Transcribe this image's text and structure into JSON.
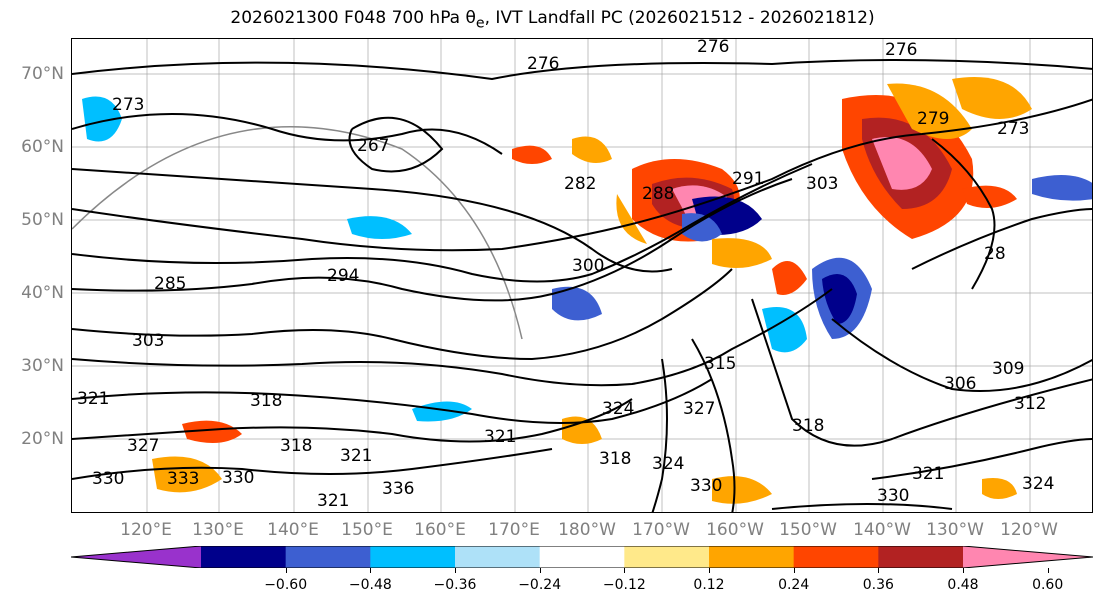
{
  "title": "2026021300 F048 700 hPa θ",
  "title_sub": "e",
  "title_rest": ", IVT Landfall PC (2026021512 - 2026021812)",
  "lat_labels": [
    "70°N",
    "60°N",
    "50°N",
    "40°N",
    "30°N",
    "20°N"
  ],
  "lon_labels": [
    "120°E",
    "130°E",
    "140°E",
    "150°E",
    "160°E",
    "170°E",
    "180°W",
    "170°W",
    "160°W",
    "150°W",
    "140°W",
    "130°W",
    "120°W"
  ],
  "colorbar": {
    "colors": [
      "#9932CC",
      "#00008B",
      "#3D5FD1",
      "#00BFFF",
      "#AEE1F8",
      "#FFFFFF",
      "#FFE98A",
      "#FFA500",
      "#FF4500",
      "#B22222",
      "#FF86B0"
    ],
    "ticks": [
      "−0.60",
      "−0.48",
      "−0.36",
      "−0.24",
      "−0.12",
      "0.12",
      "0.24",
      "0.36",
      "0.48",
      "0.60"
    ]
  },
  "contour_labels": [
    "276",
    "276",
    "276",
    "273",
    "273",
    "267",
    "279",
    "282",
    "288",
    "291",
    "303",
    "300",
    "294",
    "285",
    "303",
    "321",
    "318",
    "318",
    "321",
    "330",
    "324",
    "321",
    "318",
    "327",
    "315",
    "324",
    "327",
    "330",
    "318",
    "306",
    "309",
    "312",
    "321",
    "324",
    "330",
    "333",
    "330",
    "321",
    "336",
    "28"
  ]
}
